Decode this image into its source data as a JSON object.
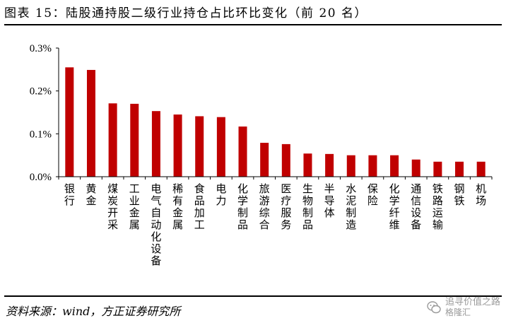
{
  "title": "图表 15：陆股通持股二级行业持仓占比环比变化（前 20 名）",
  "source": "资料来源：wind，方正证券研究所",
  "watermark": {
    "line1": "追寻价值之路",
    "line2": "格隆汇"
  },
  "chart_data": {
    "type": "bar",
    "title": "",
    "xlabel": "",
    "ylabel": "",
    "ylim": [
      0,
      0.3
    ],
    "yticks": [
      "0.0%",
      "0.1%",
      "0.2%",
      "0.3%"
    ],
    "yunit": "%",
    "bar_color": "#C00000",
    "grid": false,
    "legend": "none",
    "categories": [
      "银行",
      "黄金",
      "煤炭开采",
      "工业金属",
      "电气自动化设备",
      "稀有金属",
      "食品加工",
      "电力",
      "化学制品",
      "旅游综合",
      "医疗服务",
      "生物制品",
      "半导体",
      "水泥制造",
      "保险",
      "化学纤维",
      "通信设备",
      "铁路运输",
      "钢铁",
      "机场"
    ],
    "values": [
      0.255,
      0.249,
      0.171,
      0.17,
      0.153,
      0.145,
      0.141,
      0.139,
      0.117,
      0.079,
      0.076,
      0.054,
      0.053,
      0.05,
      0.05,
      0.05,
      0.04,
      0.035,
      0.035,
      0.035
    ]
  }
}
